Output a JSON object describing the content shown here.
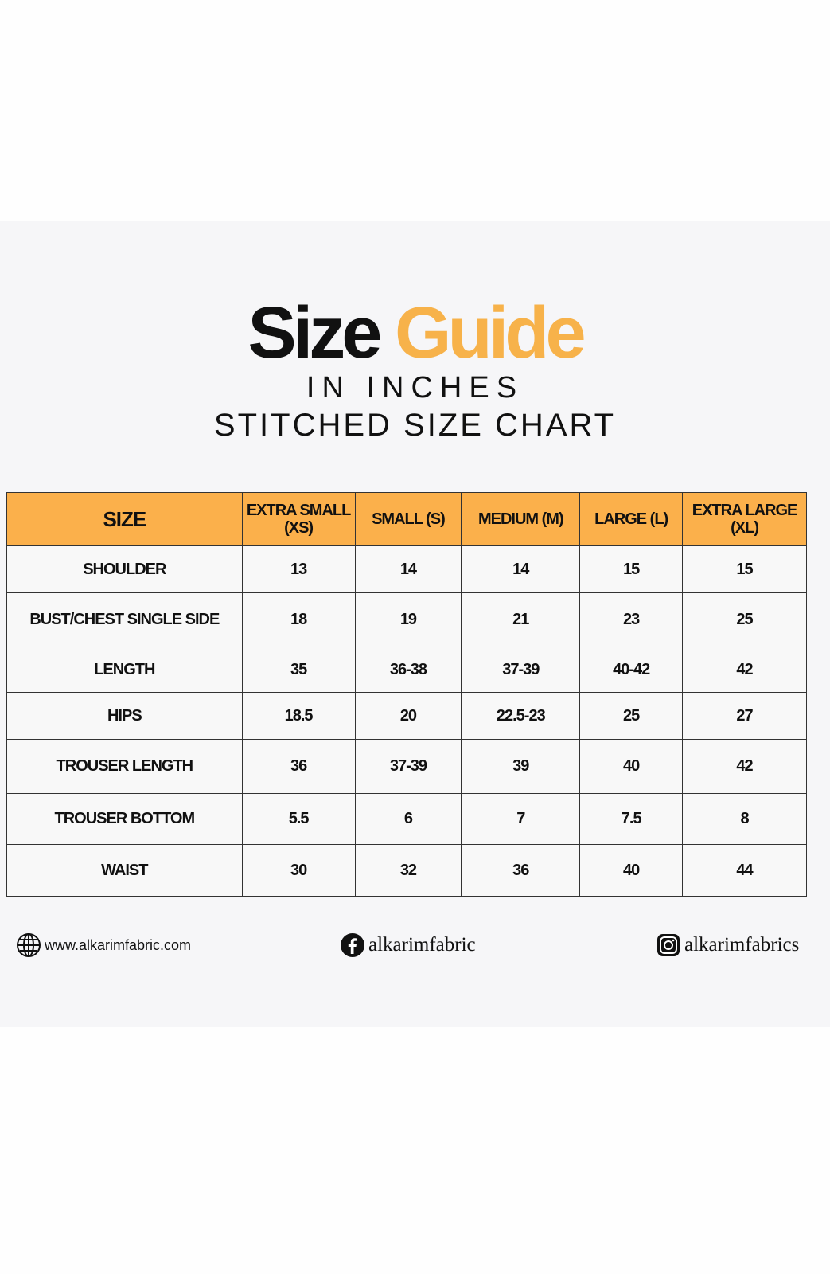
{
  "title": {
    "part1": "Size",
    "part2": "Guide",
    "accent": "#f7b24a"
  },
  "subtitle": "IN INCHES",
  "chart_title": "STITCHED SIZE CHART",
  "table": {
    "headers": [
      "SIZE",
      "EXTRA SMALL (XS)",
      "SMALL (S)",
      "MEDIUM (M)",
      "LARGE (L)",
      "EXTRA LARGE (XL)"
    ],
    "header_color": "#fbb04b",
    "rows": [
      [
        "SHOULDER",
        "13",
        "14",
        "14",
        "15",
        "15"
      ],
      [
        "BUST/CHEST SINGLE SIDE",
        "18",
        "19",
        "21",
        "23",
        "25"
      ],
      [
        "LENGTH",
        "35",
        "36-38",
        "37-39",
        "40-42",
        "42"
      ],
      [
        "HIPS",
        "18.5",
        "20",
        "22.5-23",
        "25",
        "27"
      ],
      [
        "TROUSER LENGTH",
        "36",
        "37-39",
        "39",
        "40",
        "42"
      ],
      [
        "TROUSER BOTTOM",
        "5.5",
        "6",
        "7",
        "7.5",
        "8"
      ],
      [
        "WAIST",
        "30",
        "32",
        "36",
        "40",
        "44"
      ]
    ]
  },
  "footer": {
    "website": {
      "icon": "globe-icon",
      "text": "www.alkarimfabric.com"
    },
    "facebook": {
      "icon": "facebook-icon",
      "text": "alkarimfabric"
    },
    "instagram": {
      "icon": "instagram-icon",
      "text": "alkarimfabrics"
    }
  }
}
